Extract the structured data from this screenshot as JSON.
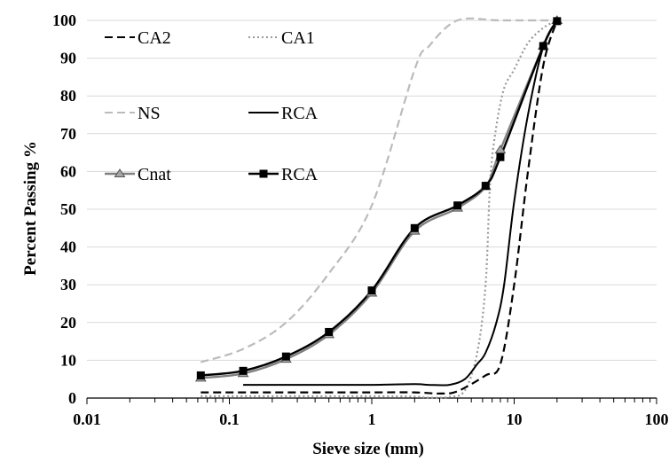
{
  "chart_data": {
    "type": "line",
    "xlabel": "Sieve size (mm)",
    "ylabel": "Percent Passing %",
    "xscale": "log",
    "xlim": [
      0.01,
      100
    ],
    "ylim": [
      0,
      100
    ],
    "x_ticks": [
      "0.01",
      "0.1",
      "1",
      "10",
      "100"
    ],
    "y_ticks": [
      "0",
      "10",
      "20",
      "30",
      "40",
      "50",
      "60",
      "70",
      "80",
      "90",
      "100"
    ],
    "grid": "horizontal",
    "legend_position": "upper-left",
    "series": [
      {
        "name": "CA2",
        "color": "#000000",
        "style": "dashed",
        "marker": "none",
        "points": [
          [
            0.063,
            1.5
          ],
          [
            0.125,
            1.5
          ],
          [
            0.5,
            1.5
          ],
          [
            1,
            1.5
          ],
          [
            2,
            1.5
          ],
          [
            3,
            1.2
          ],
          [
            4,
            1.8
          ],
          [
            6.3,
            6
          ],
          [
            8,
            9
          ],
          [
            10,
            30
          ],
          [
            12.5,
            60
          ],
          [
            16,
            88
          ],
          [
            20,
            100
          ]
        ]
      },
      {
        "name": "CA1",
        "color": "#999999",
        "style": "dotted",
        "marker": "none",
        "points": [
          [
            0.063,
            0.5
          ],
          [
            0.125,
            0.5
          ],
          [
            0.5,
            0.5
          ],
          [
            1,
            0.5
          ],
          [
            2,
            0.4
          ],
          [
            2.5,
            0.1
          ],
          [
            3.5,
            0.3
          ],
          [
            4.5,
            2
          ],
          [
            5.5,
            12
          ],
          [
            6.3,
            30
          ],
          [
            6.8,
            58
          ],
          [
            7.5,
            72
          ],
          [
            8.5,
            82
          ],
          [
            10,
            87
          ],
          [
            12.5,
            94
          ],
          [
            16,
            98
          ],
          [
            20,
            100
          ]
        ]
      },
      {
        "name": "NS",
        "color": "#bbbbbb",
        "style": "dashed",
        "marker": "none",
        "points": [
          [
            0.063,
            9.5
          ],
          [
            0.125,
            13
          ],
          [
            0.25,
            20
          ],
          [
            0.5,
            33
          ],
          [
            1,
            51
          ],
          [
            2,
            87
          ],
          [
            2.5,
            93
          ],
          [
            4,
            100
          ],
          [
            8,
            100
          ],
          [
            20,
            100
          ]
        ]
      },
      {
        "name": "RCA",
        "color": "#000000",
        "style": "solid",
        "marker": "none",
        "points": [
          [
            0.125,
            3.5
          ],
          [
            0.5,
            3.5
          ],
          [
            1,
            3.5
          ],
          [
            2,
            3.7
          ],
          [
            2.5,
            3.5
          ],
          [
            3.5,
            3.5
          ],
          [
            4.5,
            5
          ],
          [
            5.5,
            9
          ],
          [
            6.3,
            12
          ],
          [
            7.5,
            20
          ],
          [
            8.5,
            30
          ],
          [
            10,
            52
          ],
          [
            12.5,
            75
          ],
          [
            16,
            93
          ],
          [
            20,
            100
          ]
        ]
      },
      {
        "name": "Cnat",
        "color": "#808080",
        "style": "solid",
        "marker": "triangle",
        "points": [
          [
            0.063,
            5.3
          ],
          [
            0.125,
            6.5
          ],
          [
            0.25,
            10.3
          ],
          [
            0.5,
            16.8
          ],
          [
            1,
            27.8
          ],
          [
            2,
            44.2
          ],
          [
            4,
            50.3
          ],
          [
            6.3,
            56
          ],
          [
            8,
            65.7
          ],
          [
            16,
            93.2
          ],
          [
            20,
            100
          ]
        ]
      },
      {
        "name": "RCA",
        "color": "#000000",
        "style": "solid",
        "marker": "square",
        "points": [
          [
            0.063,
            6
          ],
          [
            0.125,
            7.2
          ],
          [
            0.25,
            11
          ],
          [
            0.5,
            17.5
          ],
          [
            1,
            28.5
          ],
          [
            2,
            45
          ],
          [
            4,
            51
          ],
          [
            6.3,
            56.2
          ],
          [
            8,
            63.8
          ],
          [
            16,
            93.2
          ],
          [
            20,
            99.8
          ]
        ]
      }
    ]
  }
}
